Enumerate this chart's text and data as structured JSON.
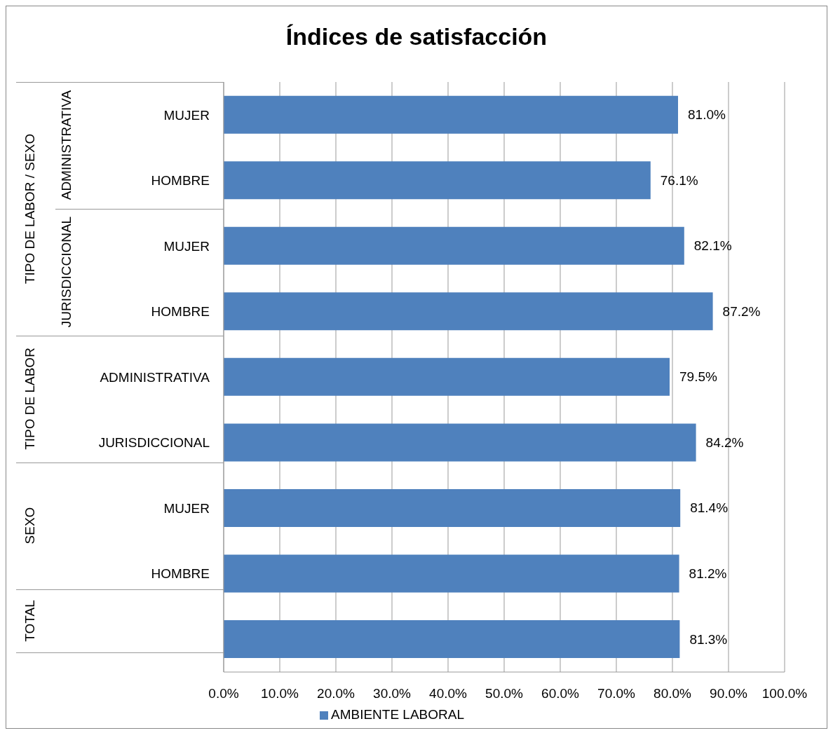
{
  "chart_data": {
    "type": "bar",
    "orientation": "horizontal",
    "title": "Índices de satisfacción",
    "categories": [
      "MUJER",
      "HOMBRE",
      "MUJER",
      "HOMBRE",
      "ADMINISTRATIVA",
      "JURISDICCIONAL",
      "MUJER",
      "HOMBRE",
      null
    ],
    "series": [
      {
        "name": "AMBIENTE LABORAL",
        "color": "#4f81bd",
        "values": [
          81.0,
          76.1,
          82.1,
          87.2,
          79.5,
          84.2,
          81.4,
          81.2,
          81.3
        ],
        "value_labels": [
          "81.0%",
          "76.1%",
          "82.1%",
          "87.2%",
          "79.5%",
          "84.2%",
          "81.4%",
          "81.2%",
          "81.3%"
        ]
      }
    ],
    "xlim": [
      0,
      100
    ],
    "xticks": [
      {
        "value": 0,
        "label": "0.0%"
      },
      {
        "value": 10,
        "label": "10.0%"
      },
      {
        "value": 20,
        "label": "20.0%"
      },
      {
        "value": 30,
        "label": "30.0%"
      },
      {
        "value": 40,
        "label": "40.0%"
      },
      {
        "value": 50,
        "label": "50.0%"
      },
      {
        "value": 60,
        "label": "60.0%"
      },
      {
        "value": 70,
        "label": "70.0%"
      },
      {
        "value": 80,
        "label": "80.0%"
      },
      {
        "value": 90,
        "label": "90.0%"
      },
      {
        "value": 100,
        "label": "100.0%"
      }
    ],
    "annotations": [
      "ADMINISTRATIVA",
      "JURISDICCIONAL",
      "TIPO DE LABOR / SEXO",
      "TIPO DE LABOR",
      "SEXO",
      "TOTAL"
    ],
    "grid": "x",
    "legend": "bottom"
  }
}
